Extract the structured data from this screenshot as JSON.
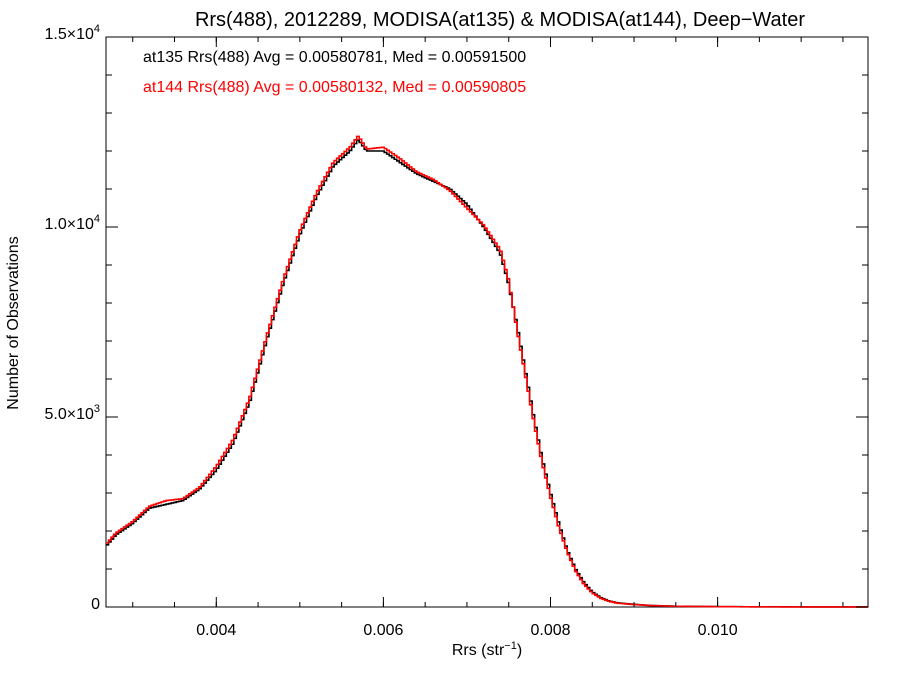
{
  "chart_data": {
    "type": "line",
    "title": "Rrs(488), 2012289, MODISA(at135) & MODISA(at144), Deep−Water",
    "xlabel_base": "Rrs (str",
    "xlabel_sup": "−1",
    "xlabel_close": ")",
    "ylabel": "Number of Observations",
    "xlim": [
      0.00268,
      0.0118
    ],
    "ylim": [
      0,
      15000
    ],
    "x_ticks": [
      {
        "value": 0.004,
        "label": "0.004"
      },
      {
        "value": 0.006,
        "label": "0.006"
      },
      {
        "value": 0.008,
        "label": "0.008"
      },
      {
        "value": 0.01,
        "label": "0.010"
      }
    ],
    "y_ticks": [
      {
        "value": 0,
        "mant": "0",
        "exp": ""
      },
      {
        "value": 5000,
        "mant": "5.0×10",
        "exp": "3"
      },
      {
        "value": 10000,
        "mant": "1.0×10",
        "exp": "4"
      },
      {
        "value": 15000,
        "mant": "1.5×10",
        "exp": "4"
      }
    ],
    "grid": false,
    "legend_placement": "top-left",
    "series": [
      {
        "name": "at135",
        "label": "at135 Rrs(488) Avg = 0.00580781, Med = 0.00591500",
        "color": "#000000",
        "points": [
          [
            0.00268,
            1600
          ],
          [
            0.0028,
            1900
          ],
          [
            0.003,
            2200
          ],
          [
            0.0032,
            2600
          ],
          [
            0.0034,
            2700
          ],
          [
            0.0036,
            2800
          ],
          [
            0.0038,
            3100
          ],
          [
            0.004,
            3600
          ],
          [
            0.0042,
            4300
          ],
          [
            0.0044,
            5400
          ],
          [
            0.0046,
            7000
          ],
          [
            0.0048,
            8500
          ],
          [
            0.005,
            9800
          ],
          [
            0.0052,
            10800
          ],
          [
            0.0054,
            11600
          ],
          [
            0.0056,
            12000
          ],
          [
            0.0057,
            12300
          ],
          [
            0.0058,
            12000
          ],
          [
            0.006,
            12000
          ],
          [
            0.0062,
            11700
          ],
          [
            0.0064,
            11400
          ],
          [
            0.0066,
            11200
          ],
          [
            0.0068,
            11000
          ],
          [
            0.007,
            10600
          ],
          [
            0.0072,
            10000
          ],
          [
            0.0074,
            9300
          ],
          [
            0.0075,
            8500
          ],
          [
            0.0076,
            7400
          ],
          [
            0.0077,
            6200
          ],
          [
            0.0078,
            5000
          ],
          [
            0.0079,
            3900
          ],
          [
            0.008,
            3000
          ],
          [
            0.0081,
            2200
          ],
          [
            0.0082,
            1500
          ],
          [
            0.0083,
            1000
          ],
          [
            0.0084,
            650
          ],
          [
            0.0085,
            400
          ],
          [
            0.0086,
            250
          ],
          [
            0.0087,
            160
          ],
          [
            0.0088,
            110
          ],
          [
            0.009,
            70
          ],
          [
            0.0092,
            40
          ],
          [
            0.0095,
            20
          ],
          [
            0.01,
            10
          ],
          [
            0.0105,
            5
          ],
          [
            0.011,
            3
          ],
          [
            0.0118,
            1
          ]
        ]
      },
      {
        "name": "at144",
        "label": "at144 Rrs(488) Avg = 0.00580132, Med = 0.00590805",
        "color": "#ff0000",
        "points": [
          [
            0.00268,
            1650
          ],
          [
            0.0028,
            1950
          ],
          [
            0.003,
            2250
          ],
          [
            0.0032,
            2650
          ],
          [
            0.0034,
            2800
          ],
          [
            0.0036,
            2850
          ],
          [
            0.0038,
            3150
          ],
          [
            0.004,
            3700
          ],
          [
            0.0042,
            4400
          ],
          [
            0.0044,
            5500
          ],
          [
            0.0046,
            7100
          ],
          [
            0.0048,
            8600
          ],
          [
            0.005,
            9900
          ],
          [
            0.0052,
            10900
          ],
          [
            0.0054,
            11700
          ],
          [
            0.0056,
            12100
          ],
          [
            0.0057,
            12400
          ],
          [
            0.0058,
            12050
          ],
          [
            0.006,
            12100
          ],
          [
            0.0062,
            11800
          ],
          [
            0.0064,
            11450
          ],
          [
            0.0066,
            11250
          ],
          [
            0.0068,
            10950
          ],
          [
            0.007,
            10500
          ],
          [
            0.0072,
            10050
          ],
          [
            0.0074,
            9400
          ],
          [
            0.0075,
            8600
          ],
          [
            0.0076,
            7300
          ],
          [
            0.0077,
            6100
          ],
          [
            0.0078,
            4900
          ],
          [
            0.0079,
            3800
          ],
          [
            0.008,
            2900
          ],
          [
            0.0081,
            2100
          ],
          [
            0.0082,
            1450
          ],
          [
            0.0083,
            950
          ],
          [
            0.0084,
            600
          ],
          [
            0.0085,
            370
          ],
          [
            0.0086,
            230
          ],
          [
            0.0087,
            150
          ],
          [
            0.0088,
            100
          ],
          [
            0.009,
            65
          ],
          [
            0.0092,
            38
          ],
          [
            0.0095,
            18
          ],
          [
            0.01,
            9
          ],
          [
            0.0105,
            4
          ],
          [
            0.011,
            2
          ],
          [
            0.0118,
            1
          ]
        ]
      }
    ]
  }
}
